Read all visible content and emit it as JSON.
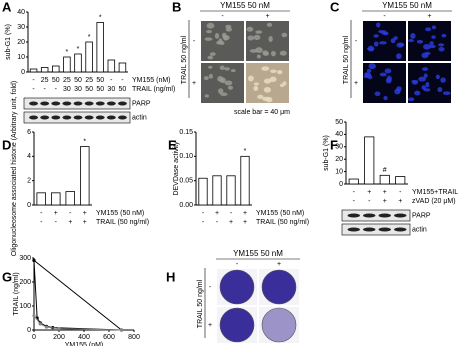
{
  "chart_data": [
    {
      "type": "bar",
      "panel": "A",
      "y_label": "sub-G1 (%)",
      "ylim": [
        0,
        40
      ],
      "yticks": [
        0,
        10,
        20,
        30,
        40
      ],
      "values": [
        2,
        3,
        4,
        10,
        12,
        20,
        33,
        8,
        6
      ],
      "color": "#ffffff",
      "annotations": [
        {
          "index": 3,
          "text": "*"
        },
        {
          "index": 4,
          "text": "*"
        },
        {
          "index": 5,
          "text": "*"
        },
        {
          "index": 6,
          "text": "*"
        }
      ],
      "conditions": [
        {
          "label": "YM155 (nM)",
          "values": [
            "-",
            "25",
            "50",
            "25",
            "50",
            "25",
            "50",
            "-",
            "-"
          ]
        },
        {
          "label": "TRAIL (ng/ml)",
          "values": [
            "-",
            "-",
            "-",
            "30",
            "30",
            "50",
            "50",
            "30",
            "50"
          ]
        }
      ],
      "blot": [
        "PARP",
        "actin"
      ]
    },
    {
      "type": "bar",
      "panel": "D",
      "y_label": "Oligonucleosome associated histone (Arbitrary unit, fold)",
      "ylim": [
        0,
        6
      ],
      "yticks": [
        0,
        2,
        4,
        6
      ],
      "values": [
        1,
        1,
        1.1,
        4.8
      ],
      "color": "#ffffff",
      "annotations": [
        {
          "index": 3,
          "text": "*"
        }
      ],
      "conditions": [
        {
          "label": "YM155 (50 nM)",
          "values": [
            "-",
            "+",
            "-",
            "+"
          ]
        },
        {
          "label": "TRAIL (50 ng/ml)",
          "values": [
            "-",
            "-",
            "+",
            "+"
          ]
        }
      ]
    },
    {
      "type": "bar",
      "panel": "E",
      "y_label": "DEVDase activity",
      "ylim": [
        0,
        0.15
      ],
      "yticks": [
        {
          "value": 0,
          "label": "0.00"
        },
        {
          "value": 0.05,
          "label": "0.05"
        },
        {
          "value": 0.1,
          "label": "0.10"
        },
        {
          "value": 0.15,
          "label": "0.15"
        }
      ],
      "values": [
        0.055,
        0.06,
        0.06,
        0.1
      ],
      "color": "#ffffff",
      "annotations": [
        {
          "index": 3,
          "text": "*"
        }
      ],
      "conditions": [
        {
          "label": "YM155 (50 nM)",
          "values": [
            "-",
            "+",
            "-",
            "+"
          ]
        },
        {
          "label": "TRAIL (50 ng/ml)",
          "values": [
            "-",
            "-",
            "+",
            "+"
          ]
        }
      ]
    },
    {
      "type": "bar",
      "panel": "F",
      "y_label": "sub-G1 (%)",
      "ylim": [
        0,
        50
      ],
      "yticks": [
        0,
        10,
        20,
        30,
        40,
        50
      ],
      "values": [
        4,
        38,
        7,
        6
      ],
      "color": "#ffffff",
      "annotations": [
        {
          "index": 2,
          "text": "#"
        }
      ],
      "conditions": [
        {
          "label": "YM155+TRAIL",
          "values": [
            "-",
            "+",
            "+",
            "-"
          ]
        },
        {
          "label": "zVAD (20 μM)",
          "values": [
            "-",
            "-",
            "+",
            "+"
          ]
        }
      ],
      "blot": [
        "PARP",
        "actin"
      ]
    },
    {
      "type": "line",
      "panel": "G",
      "x_label": "YM155 (nM)",
      "y_label": "TRAIL (ng/ml)",
      "xlim": [
        0,
        800
      ],
      "xticks": [
        0,
        200,
        400,
        600,
        800
      ],
      "ylim": [
        0,
        300
      ],
      "yticks": [
        0,
        100,
        200,
        300
      ],
      "series": [
        {
          "color": "#000000",
          "x": [
            0,
            700
          ],
          "y": [
            290,
            0
          ]
        },
        {
          "color": "#000000",
          "x": [
            0,
            25,
            50,
            100,
            150,
            700
          ],
          "y": [
            290,
            50,
            30,
            15,
            10,
            0
          ]
        },
        {
          "color": "#888888",
          "x": [
            0,
            50,
            100,
            200,
            700
          ],
          "y": [
            60,
            25,
            12,
            5,
            0
          ]
        }
      ]
    }
  ],
  "image_panels": [
    {
      "panel": "B",
      "title": "YM155 50 nM",
      "column_labels": [
        "-",
        "+"
      ],
      "row_axis_label": "TRAIL 50 ng/ml",
      "row_labels": [
        "-",
        "+"
      ],
      "caption": "scale bar = 40 μm"
    },
    {
      "panel": "C",
      "title": "YM155 50 nM",
      "column_labels": [
        "-",
        "+"
      ],
      "row_axis_label": "TRAIL 50 ng/ml",
      "row_labels": [
        "-",
        "+"
      ]
    },
    {
      "panel": "H",
      "title": "YM155 50 nM",
      "column_labels": [
        "-",
        "+"
      ],
      "row_axis_label": "TRAIL 50 ng/ml",
      "row_labels": [
        "-",
        "+"
      ]
    }
  ]
}
